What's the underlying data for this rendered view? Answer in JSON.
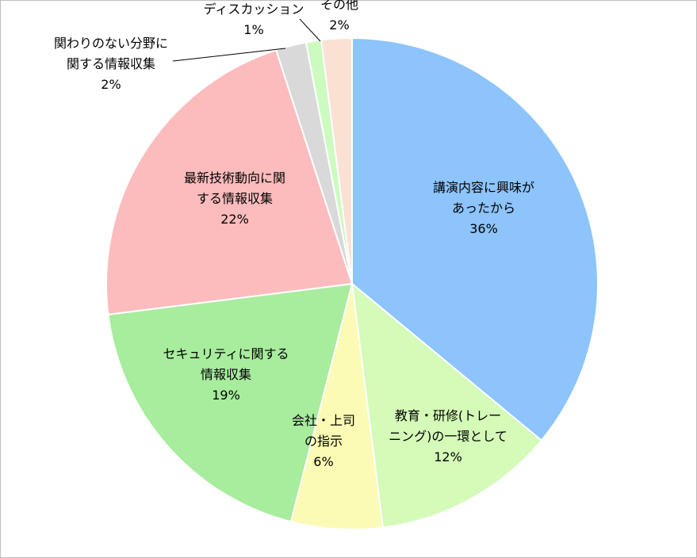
{
  "chart_data": {
    "type": "pie",
    "slices": [
      {
        "label_lines": [
          "講演内容に興味が",
          "あったから"
        ],
        "pct_label": "36%",
        "value": 36,
        "color": "#8cc4fb"
      },
      {
        "label_lines": [
          "教育・研修(トレー",
          "ニング)の一環として"
        ],
        "pct_label": "12%",
        "value": 12,
        "color": "#d4fbb8"
      },
      {
        "label_lines": [
          "会社・上司",
          "の指示"
        ],
        "pct_label": "6%",
        "value": 6,
        "color": "#fbfbb5"
      },
      {
        "label_lines": [
          "セキュリティに関する",
          "情報収集"
        ],
        "pct_label": "19%",
        "value": 19,
        "color": "#a8ec9e"
      },
      {
        "label_lines": [
          "最新技術動向に関",
          "する情報収集"
        ],
        "pct_label": "22%",
        "value": 22,
        "color": "#fcbcbd"
      },
      {
        "label_lines": [
          "関わりのない分野に",
          "関する情報収集"
        ],
        "pct_label": "2%",
        "value": 2,
        "color": "#d9d9d9"
      },
      {
        "label_lines": [
          "ディスカッション"
        ],
        "pct_label": "1%",
        "value": 1,
        "color": "#ccfbc0"
      },
      {
        "label_lines": [
          "その他"
        ],
        "pct_label": "2%",
        "value": 2,
        "color": "#fbe0d4"
      }
    ]
  }
}
